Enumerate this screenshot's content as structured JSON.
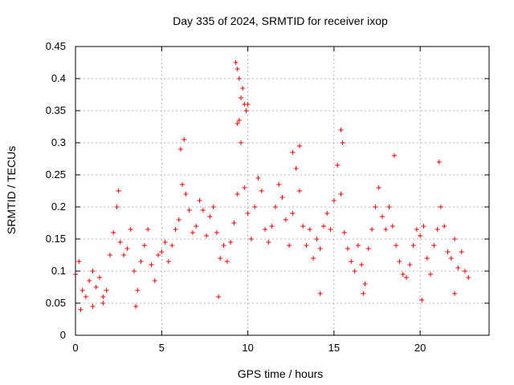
{
  "chart_data": {
    "type": "scatter",
    "title": "Day 335 of 2024, SRMTID for receiver ixop",
    "xlabel": "GPS time / hours",
    "ylabel": "SRMTID / TECUs",
    "xlim": [
      0,
      24
    ],
    "ylim": [
      0,
      0.45
    ],
    "xticks": [
      0,
      5,
      10,
      15,
      20
    ],
    "yticks": [
      0,
      0.05,
      0.1,
      0.15,
      0.2,
      0.25,
      0.3,
      0.35,
      0.4,
      0.45
    ],
    "xtick_labels": [
      "0",
      "5",
      "10",
      "15",
      "20"
    ],
    "ytick_labels": [
      "0",
      "0.05",
      "0.1",
      "0.15",
      "0.2",
      "0.25",
      "0.3",
      "0.35",
      "0.4",
      "0.45"
    ],
    "grid": true,
    "marker": "+",
    "marker_color": "#ff0000",
    "series": [
      {
        "name": "SRMTID",
        "points": [
          [
            0.0,
            0.095
          ],
          [
            0.2,
            0.115
          ],
          [
            0.4,
            0.07
          ],
          [
            0.6,
            0.06
          ],
          [
            0.8,
            0.085
          ],
          [
            1.0,
            0.1
          ],
          [
            1.2,
            0.075
          ],
          [
            1.4,
            0.09
          ],
          [
            1.6,
            0.06
          ],
          [
            1.8,
            0.07
          ],
          [
            2.0,
            0.125
          ],
          [
            2.2,
            0.16
          ],
          [
            2.4,
            0.2
          ],
          [
            2.6,
            0.145
          ],
          [
            2.8,
            0.125
          ],
          [
            3.0,
            0.135
          ],
          [
            3.2,
            0.165
          ],
          [
            3.4,
            0.1
          ],
          [
            3.6,
            0.07
          ],
          [
            3.8,
            0.115
          ],
          [
            4.0,
            0.14
          ],
          [
            4.2,
            0.165
          ],
          [
            4.4,
            0.11
          ],
          [
            4.6,
            0.085
          ],
          [
            4.8,
            0.125
          ],
          [
            5.0,
            0.13
          ],
          [
            5.2,
            0.145
          ],
          [
            5.4,
            0.115
          ],
          [
            5.6,
            0.14
          ],
          [
            5.8,
            0.165
          ],
          [
            6.0,
            0.18
          ],
          [
            6.2,
            0.235
          ],
          [
            6.4,
            0.22
          ],
          [
            6.6,
            0.195
          ],
          [
            6.8,
            0.16
          ],
          [
            7.0,
            0.17
          ],
          [
            7.2,
            0.21
          ],
          [
            7.4,
            0.195
          ],
          [
            7.6,
            0.155
          ],
          [
            7.8,
            0.185
          ],
          [
            8.0,
            0.2
          ],
          [
            8.2,
            0.16
          ],
          [
            8.4,
            0.12
          ],
          [
            8.6,
            0.14
          ],
          [
            8.8,
            0.115
          ],
          [
            9.0,
            0.145
          ],
          [
            9.2,
            0.175
          ],
          [
            9.4,
            0.22
          ],
          [
            9.6,
            0.3
          ],
          [
            9.8,
            0.23
          ],
          [
            10.0,
            0.19
          ],
          [
            10.2,
            0.15
          ],
          [
            10.4,
            0.2
          ],
          [
            10.6,
            0.245
          ],
          [
            10.8,
            0.225
          ],
          [
            11.0,
            0.165
          ],
          [
            11.2,
            0.145
          ],
          [
            11.4,
            0.17
          ],
          [
            11.6,
            0.2
          ],
          [
            11.8,
            0.235
          ],
          [
            12.0,
            0.215
          ],
          [
            12.2,
            0.18
          ],
          [
            12.4,
            0.14
          ],
          [
            12.6,
            0.19
          ],
          [
            12.8,
            0.26
          ],
          [
            13.0,
            0.225
          ],
          [
            13.2,
            0.17
          ],
          [
            13.4,
            0.14
          ],
          [
            13.6,
            0.165
          ],
          [
            13.8,
            0.12
          ],
          [
            14.0,
            0.15
          ],
          [
            14.2,
            0.135
          ],
          [
            14.4,
            0.17
          ],
          [
            14.6,
            0.19
          ],
          [
            14.8,
            0.165
          ],
          [
            15.0,
            0.21
          ],
          [
            15.2,
            0.265
          ],
          [
            15.4,
            0.22
          ],
          [
            15.6,
            0.16
          ],
          [
            15.8,
            0.135
          ],
          [
            16.0,
            0.115
          ],
          [
            16.2,
            0.1
          ],
          [
            16.4,
            0.14
          ],
          [
            16.6,
            0.11
          ],
          [
            16.8,
            0.08
          ],
          [
            17.0,
            0.135
          ],
          [
            17.2,
            0.165
          ],
          [
            17.4,
            0.2
          ],
          [
            17.6,
            0.23
          ],
          [
            17.8,
            0.185
          ],
          [
            18.0,
            0.165
          ],
          [
            18.2,
            0.2
          ],
          [
            18.4,
            0.17
          ],
          [
            18.6,
            0.14
          ],
          [
            18.8,
            0.115
          ],
          [
            19.0,
            0.095
          ],
          [
            19.2,
            0.09
          ],
          [
            19.4,
            0.11
          ],
          [
            19.6,
            0.14
          ],
          [
            19.8,
            0.165
          ],
          [
            20.0,
            0.155
          ],
          [
            20.2,
            0.17
          ],
          [
            20.4,
            0.12
          ],
          [
            20.6,
            0.095
          ],
          [
            20.8,
            0.14
          ],
          [
            21.0,
            0.165
          ],
          [
            21.2,
            0.2
          ],
          [
            21.4,
            0.17
          ],
          [
            21.6,
            0.13
          ],
          [
            21.8,
            0.12
          ],
          [
            22.0,
            0.15
          ],
          [
            22.2,
            0.105
          ],
          [
            22.4,
            0.13
          ],
          [
            22.6,
            0.1
          ],
          [
            22.8,
            0.09
          ],
          [
            9.3,
            0.425
          ],
          [
            9.4,
            0.415
          ],
          [
            9.5,
            0.4
          ],
          [
            9.6,
            0.37
          ],
          [
            9.7,
            0.385
          ],
          [
            9.8,
            0.36
          ],
          [
            9.9,
            0.35
          ],
          [
            10.0,
            0.36
          ],
          [
            9.5,
            0.335
          ],
          [
            9.4,
            0.33
          ],
          [
            15.4,
            0.32
          ],
          [
            15.5,
            0.3
          ],
          [
            6.3,
            0.305
          ],
          [
            6.1,
            0.29
          ],
          [
            13.0,
            0.295
          ],
          [
            12.6,
            0.285
          ],
          [
            18.5,
            0.28
          ],
          [
            21.1,
            0.27
          ],
          [
            20.1,
            0.055
          ],
          [
            2.5,
            0.225
          ],
          [
            0.3,
            0.04
          ],
          [
            1.0,
            0.045
          ],
          [
            1.6,
            0.05
          ],
          [
            3.5,
            0.045
          ],
          [
            16.7,
            0.065
          ],
          [
            8.3,
            0.06
          ],
          [
            14.2,
            0.065
          ],
          [
            22.0,
            0.065
          ]
        ]
      }
    ]
  }
}
